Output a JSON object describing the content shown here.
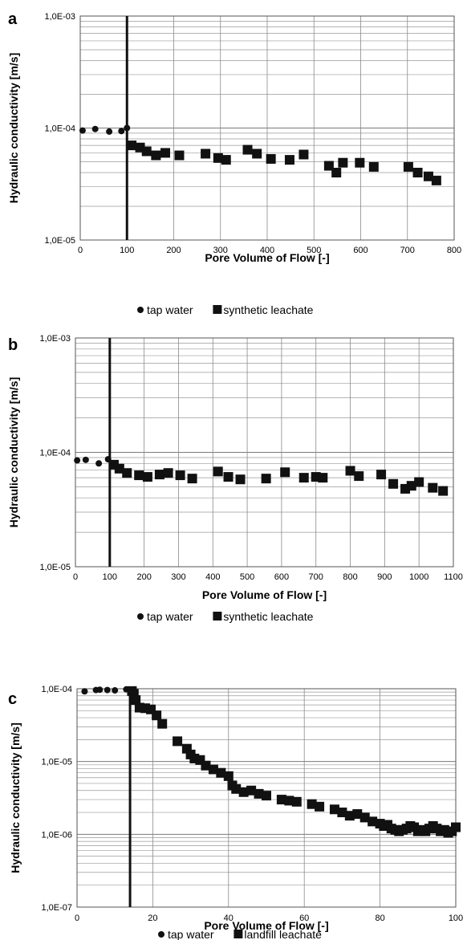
{
  "chart_data": [
    {
      "type": "scatter",
      "panel_label": "a",
      "xlabel": "Pore Volume of Flow [-]",
      "ylabel": "Hydraulic conductivity [m/s]",
      "xlim": [
        0,
        800
      ],
      "ylim": [
        1e-05,
        0.001
      ],
      "yscale": "log",
      "x_ticks": [
        "0",
        "100",
        "200",
        "300",
        "400",
        "500",
        "600",
        "700",
        "800"
      ],
      "y_ticks": [
        "1,0E-05",
        "1,0E-04",
        "1,0E-03"
      ],
      "grid": true,
      "vertical_line_x": 100,
      "series": [
        {
          "name": "tap water",
          "marker": "circle",
          "x": [
            5,
            32,
            62,
            88,
            100
          ],
          "y": [
            9.5e-05,
            9.8e-05,
            9.3e-05,
            9.4e-05,
            0.0001
          ]
        },
        {
          "name": "synthetic leachate",
          "marker": "square",
          "x": [
            110,
            128,
            142,
            162,
            182,
            212,
            268,
            295,
            312,
            358,
            378,
            408,
            448,
            478,
            532,
            548,
            562,
            598,
            628,
            702,
            722,
            745,
            762
          ],
          "y": [
            7e-05,
            6.7e-05,
            6.2e-05,
            5.7e-05,
            6e-05,
            5.7e-05,
            5.9e-05,
            5.4e-05,
            5.2e-05,
            6.4e-05,
            5.9e-05,
            5.3e-05,
            5.2e-05,
            5.8e-05,
            4.6e-05,
            4e-05,
            4.9e-05,
            4.9e-05,
            4.5e-05,
            4.5e-05,
            4e-05,
            3.7e-05,
            3.4e-05
          ]
        }
      ],
      "legend": [
        "tap water",
        "synthetic leachate"
      ]
    },
    {
      "type": "scatter",
      "panel_label": "b",
      "xlabel": "Pore Volume of Flow [-]",
      "ylabel": "Hydraulic conductivity  [m/s]",
      "xlim": [
        0,
        1100
      ],
      "ylim": [
        1e-05,
        0.001
      ],
      "yscale": "log",
      "x_ticks": [
        "0",
        "100",
        "200",
        "300",
        "400",
        "500",
        "600",
        "700",
        "800",
        "900",
        "1000",
        "1100"
      ],
      "y_ticks": [
        "1,0E-05",
        "1,0E-04",
        "1,0E-03"
      ],
      "grid": true,
      "vertical_line_x": 100,
      "series": [
        {
          "name": "tap water",
          "marker": "circle",
          "x": [
            5,
            30,
            68,
            95
          ],
          "y": [
            8.5e-05,
            8.6e-05,
            8e-05,
            8.7e-05
          ]
        },
        {
          "name": "synthetic leachate",
          "marker": "square",
          "x": [
            112,
            128,
            150,
            185,
            210,
            245,
            270,
            305,
            340,
            415,
            445,
            480,
            555,
            610,
            665,
            700,
            720,
            800,
            825,
            890,
            925,
            960,
            978,
            1000,
            1040,
            1070
          ],
          "y": [
            7.8e-05,
            7.2e-05,
            6.6e-05,
            6.3e-05,
            6.1e-05,
            6.4e-05,
            6.6e-05,
            6.3e-05,
            5.9e-05,
            6.8e-05,
            6.1e-05,
            5.8e-05,
            5.9e-05,
            6.7e-05,
            6e-05,
            6.1e-05,
            6e-05,
            6.9e-05,
            6.2e-05,
            6.4e-05,
            5.3e-05,
            4.8e-05,
            5.1e-05,
            5.5e-05,
            4.9e-05,
            4.6e-05
          ]
        }
      ],
      "legend": [
        "tap water",
        "synthetic leachate"
      ]
    },
    {
      "type": "scatter",
      "panel_label": "c",
      "xlabel": "Pore Volume of Flow [-]",
      "ylabel": "Hydraulic conductivity [m/s]",
      "xlim": [
        0,
        100
      ],
      "ylim": [
        1e-07,
        0.0001
      ],
      "yscale": "log",
      "x_ticks": [
        "0",
        "20",
        "40",
        "60",
        "80",
        "100"
      ],
      "y_ticks": [
        "1,0E-07",
        "1,0E-06",
        "1,0E-05",
        "1,0E-04"
      ],
      "grid": true,
      "vertical_line_x": 14,
      "series": [
        {
          "name": "tap water",
          "marker": "circle",
          "x": [
            2,
            5,
            6,
            8,
            10,
            13,
            14
          ],
          "y": [
            9.2e-05,
            9.6e-05,
            9.7e-05,
            9.6e-05,
            9.5e-05,
            9.8e-05,
            9.7e-05
          ]
        },
        {
          "name": "landfill leachate",
          "marker": "square",
          "x": [
            14.5,
            15,
            15.5,
            16.5,
            18,
            19.5,
            21,
            22.5,
            26.5,
            29,
            30,
            31,
            32.5,
            34,
            36,
            38,
            40,
            41,
            42,
            44,
            46,
            48,
            50,
            54,
            56,
            58,
            62,
            64,
            68,
            70,
            72,
            74,
            76,
            78,
            80,
            81,
            82,
            83,
            84,
            85,
            86,
            87,
            88,
            89,
            90,
            91,
            92,
            93,
            94,
            95,
            96,
            97,
            98,
            99,
            100
          ],
          "y": [
            9.3e-05,
            8.5e-05,
            7e-05,
            5.5e-05,
            5.4e-05,
            5.2e-05,
            4.3e-05,
            3.3e-05,
            1.9e-05,
            1.5e-05,
            1.25e-05,
            1.1e-05,
            1.05e-05,
            8.8e-06,
            7.8e-06,
            7e-06,
            6.3e-06,
            4.7e-06,
            4.2e-06,
            3.8e-06,
            4e-06,
            3.6e-06,
            3.4e-06,
            3e-06,
            2.9e-06,
            2.8e-06,
            2.6e-06,
            2.4e-06,
            2.2e-06,
            2e-06,
            1.8e-06,
            1.9e-06,
            1.7e-06,
            1.5e-06,
            1.4e-06,
            1.3e-06,
            1.35e-06,
            1.2e-06,
            1.15e-06,
            1.1e-06,
            1.15e-06,
            1.2e-06,
            1.3e-06,
            1.25e-06,
            1.1e-06,
            1.15e-06,
            1.1e-06,
            1.2e-06,
            1.3e-06,
            1.2e-06,
            1.1e-06,
            1.15e-06,
            1.05e-06,
            1.1e-06,
            1.25e-06
          ]
        }
      ],
      "legend": [
        "tap water",
        "landfill leachate"
      ]
    }
  ]
}
